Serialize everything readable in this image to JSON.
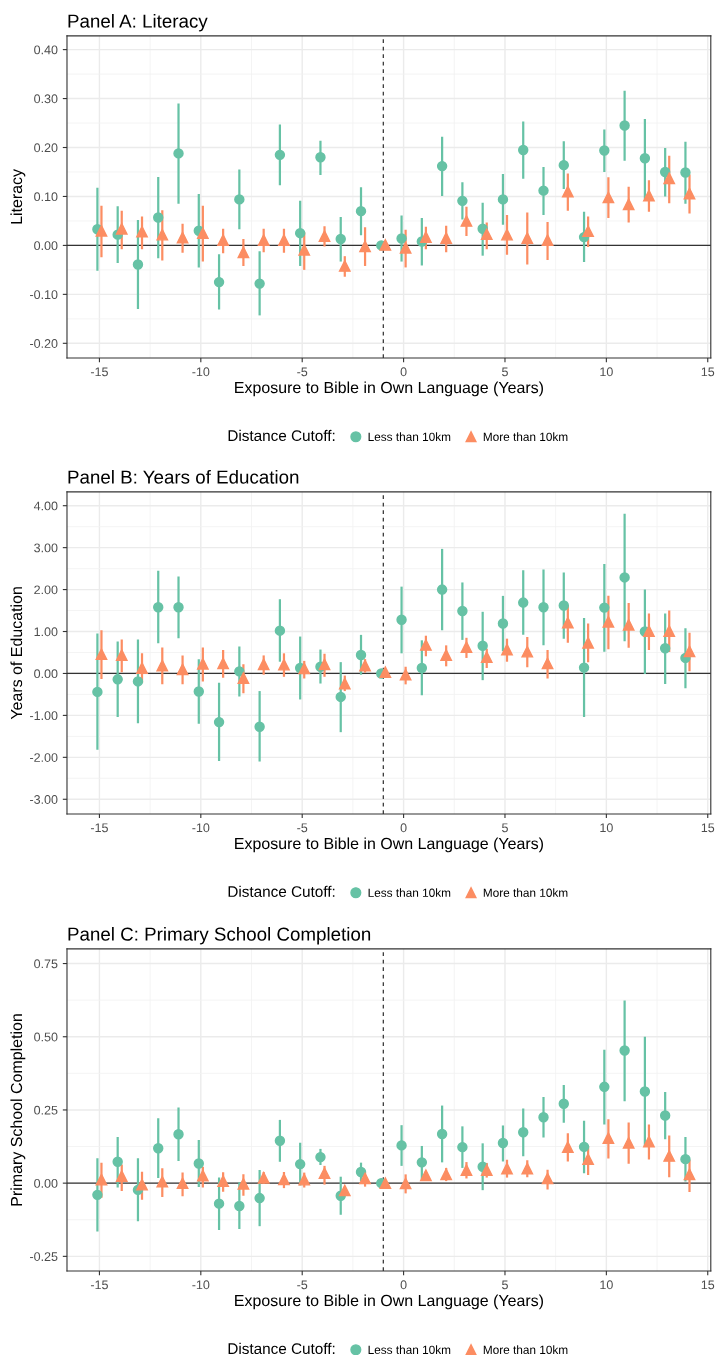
{
  "chart_data": [
    {
      "type": "scatter",
      "title": "Panel A: Literacy",
      "xlabel": "Exposure to Bible in Own Language (Years)",
      "ylabel": "Literacy",
      "legend_title": "Distance Cutoff:",
      "legend": "bottom",
      "grid": true,
      "xlim": [
        -16.6,
        15.15
      ],
      "xticks": [
        -15,
        -10,
        -5,
        0,
        5,
        10,
        15
      ],
      "ylim": [
        -0.23,
        0.428
      ],
      "yticks": [
        {
          "value": -0.2,
          "label": "-0.20"
        },
        {
          "value": -0.1,
          "label": "-0.10"
        },
        {
          "value": 0,
          "label": "0.00"
        },
        {
          "value": 0.1,
          "label": "0.10"
        },
        {
          "value": 0.2,
          "label": "0.20"
        },
        {
          "value": 0.3,
          "label": "0.30"
        },
        {
          "value": 0.4,
          "label": "0.40"
        }
      ],
      "ref_lines": [
        {
          "axis": "y",
          "value": 0,
          "color": "#333333",
          "line_style": "solid"
        },
        {
          "axis": "x",
          "value": -1,
          "color": "#333333",
          "line_style": "dashed"
        }
      ],
      "series": [
        {
          "name": "Less than 10km",
          "color": "#66c2a5",
          "marker": "circle",
          "x": [
            -15.1,
            -14.1,
            -13.1,
            -12.1,
            -11.1,
            -10.1,
            -9.1,
            -8.1,
            -7.1,
            -6.1,
            -5.1,
            -4.1,
            -3.1,
            -2.1,
            -1.1,
            -0.1,
            0.9,
            1.9,
            2.9,
            3.9,
            4.9,
            5.9,
            6.9,
            7.9,
            8.9,
            9.9,
            10.9,
            11.9,
            12.9,
            13.9
          ],
          "values": [
            0.033,
            0.022,
            -0.039,
            0.057,
            0.188,
            0.03,
            -0.075,
            0.094,
            -0.078,
            0.185,
            0.025,
            0.18,
            0.013,
            0.07,
            0.0,
            0.014,
            0.008,
            0.162,
            0.091,
            0.034,
            0.094,
            0.195,
            0.112,
            0.164,
            0.017,
            0.194,
            0.245,
            0.178,
            0.15,
            0.149
          ],
          "errors": [
            [
              -0.052,
              0.118
            ],
            [
              -0.036,
              0.08
            ],
            [
              -0.13,
              0.052
            ],
            [
              -0.026,
              0.14
            ],
            [
              0.085,
              0.29
            ],
            [
              -0.045,
              0.105
            ],
            [
              -0.131,
              -0.018
            ],
            [
              0.033,
              0.155
            ],
            [
              -0.143,
              -0.012
            ],
            [
              0.123,
              0.247
            ],
            [
              -0.042,
              0.091
            ],
            [
              0.144,
              0.214
            ],
            [
              -0.033,
              0.058
            ],
            [
              0.021,
              0.119
            ],
            null,
            [
              -0.033,
              0.061
            ],
            [
              -0.041,
              0.056
            ],
            [
              0.101,
              0.222
            ],
            [
              0.053,
              0.129
            ],
            [
              -0.021,
              0.087
            ],
            [
              0.042,
              0.146
            ],
            [
              0.136,
              0.253
            ],
            [
              0.062,
              0.16
            ],
            [
              0.115,
              0.213
            ],
            [
              -0.034,
              0.069
            ],
            [
              0.15,
              0.237
            ],
            [
              0.173,
              0.316
            ],
            [
              0.095,
              0.258
            ],
            [
              0.1,
              0.199
            ],
            [
              0.085,
              0.212
            ]
          ]
        },
        {
          "name": "More than 10km",
          "color": "#fc8d62",
          "marker": "triangle",
          "x": [
            -14.9,
            -13.9,
            -12.9,
            -11.9,
            -10.9,
            -9.9,
            -8.9,
            -7.9,
            -6.9,
            -5.9,
            -4.9,
            -3.9,
            -2.9,
            -1.9,
            -0.9,
            0.1,
            1.1,
            2.1,
            3.1,
            4.1,
            5.1,
            6.1,
            7.1,
            8.1,
            9.1,
            10.1,
            11.1,
            12.1,
            13.1,
            14.1
          ],
          "values": [
            0.03,
            0.034,
            0.028,
            0.022,
            0.016,
            0.025,
            0.011,
            -0.014,
            0.011,
            0.011,
            -0.009,
            0.019,
            -0.042,
            -0.002,
            0.001,
            -0.005,
            0.017,
            0.015,
            0.05,
            0.023,
            0.022,
            0.015,
            0.011,
            0.11,
            0.029,
            0.098,
            0.084,
            0.102,
            0.137,
            0.106
          ],
          "errors": [
            [
              -0.024,
              0.081
            ],
            [
              -0.008,
              0.071
            ],
            [
              -0.008,
              0.059
            ],
            [
              -0.031,
              0.072
            ],
            [
              -0.015,
              0.044
            ],
            [
              -0.033,
              0.081
            ],
            [
              -0.016,
              0.034
            ],
            [
              -0.042,
              0.013
            ],
            [
              -0.014,
              0.034
            ],
            [
              -0.015,
              0.034
            ],
            [
              -0.05,
              0.027
            ],
            [
              -0.002,
              0.039
            ],
            [
              -0.064,
              -0.022
            ],
            [
              -0.042,
              0.037
            ],
            null,
            [
              -0.045,
              0.032
            ],
            [
              -0.008,
              0.038
            ],
            [
              -0.014,
              0.04
            ],
            [
              0.019,
              0.079
            ],
            [
              -0.008,
              0.047
            ],
            [
              -0.019,
              0.062
            ],
            [
              -0.039,
              0.067
            ],
            [
              -0.03,
              0.048
            ],
            [
              0.071,
              0.147
            ],
            [
              -0.003,
              0.059
            ],
            [
              0.056,
              0.139
            ],
            [
              0.047,
              0.12
            ],
            [
              0.069,
              0.133
            ],
            [
              0.086,
              0.183
            ],
            [
              0.065,
              0.145
            ]
          ]
        }
      ]
    },
    {
      "type": "scatter",
      "title": "Panel B: Years of Education",
      "xlabel": "Exposure to Bible in Own Language (Years)",
      "ylabel": "Years of Education",
      "legend_title": "Distance Cutoff:",
      "legend": "bottom",
      "grid": true,
      "xlim": [
        -16.6,
        15.15
      ],
      "xticks": [
        -15,
        -10,
        -5,
        0,
        5,
        10,
        15
      ],
      "ylim": [
        -3.35,
        4.33
      ],
      "yticks": [
        {
          "value": -3,
          "label": "-3.00"
        },
        {
          "value": -2,
          "label": "-2.00"
        },
        {
          "value": -1,
          "label": "-1.00"
        },
        {
          "value": 0,
          "label": "0.00"
        },
        {
          "value": 1,
          "label": "1.00"
        },
        {
          "value": 2,
          "label": "2.00"
        },
        {
          "value": 3,
          "label": "3.00"
        },
        {
          "value": 4,
          "label": "4.00"
        }
      ],
      "ref_lines": [
        {
          "axis": "y",
          "value": 0,
          "color": "#333333",
          "line_style": "solid"
        },
        {
          "axis": "x",
          "value": -1,
          "color": "#333333",
          "line_style": "dashed"
        }
      ],
      "series": [
        {
          "name": "Less than 10km",
          "color": "#66c2a5",
          "marker": "circle",
          "x": [
            -15.1,
            -14.1,
            -13.1,
            -12.1,
            -11.1,
            -10.1,
            -9.1,
            -8.1,
            -7.1,
            -6.1,
            -5.1,
            -4.1,
            -3.1,
            -2.1,
            -1.1,
            -0.1,
            0.9,
            1.9,
            2.9,
            3.9,
            4.9,
            5.9,
            6.9,
            7.9,
            8.9,
            9.9,
            10.9,
            11.9,
            12.9,
            13.9
          ],
          "values": [
            -0.44,
            -0.14,
            -0.19,
            1.58,
            1.58,
            -0.43,
            -1.16,
            0.05,
            -1.27,
            1.02,
            0.13,
            0.16,
            -0.56,
            0.44,
            0.0,
            1.28,
            0.13,
            2.0,
            1.49,
            0.66,
            1.19,
            1.69,
            1.58,
            1.62,
            0.14,
            1.57,
            2.29,
            1.0,
            0.6,
            0.37
          ],
          "errors": [
            [
              -1.82,
              0.95
            ],
            [
              -1.04,
              0.76
            ],
            [
              -1.19,
              0.81
            ],
            [
              0.72,
              2.45
            ],
            [
              0.84,
              2.31
            ],
            [
              -1.2,
              0.34
            ],
            [
              -2.09,
              -0.22
            ],
            [
              -0.55,
              0.64
            ],
            [
              -2.1,
              -0.42
            ],
            [
              0.28,
              1.77
            ],
            [
              -0.62,
              0.88
            ],
            [
              -0.24,
              0.57
            ],
            [
              -1.4,
              0.27
            ],
            [
              -0.03,
              0.92
            ],
            null,
            [
              0.48,
              2.07
            ],
            [
              -0.52,
              0.79
            ],
            [
              1.03,
              2.97
            ],
            [
              0.8,
              2.17
            ],
            [
              -0.16,
              1.47
            ],
            [
              0.53,
              1.85
            ],
            [
              0.92,
              2.46
            ],
            [
              0.67,
              2.48
            ],
            [
              0.83,
              2.41
            ],
            [
              -1.04,
              1.32
            ],
            [
              0.52,
              2.61
            ],
            [
              0.77,
              3.81
            ],
            [
              -0.01,
              2.0
            ],
            [
              -0.25,
              1.43
            ],
            [
              -0.35,
              1.08
            ]
          ]
        },
        {
          "name": "More than 10km",
          "color": "#fc8d62",
          "marker": "triangle",
          "x": [
            -14.9,
            -13.9,
            -12.9,
            -11.9,
            -10.9,
            -9.9,
            -8.9,
            -7.9,
            -6.9,
            -5.9,
            -4.9,
            -3.9,
            -2.9,
            -1.9,
            -0.9,
            0.1,
            1.1,
            2.1,
            3.1,
            4.1,
            5.1,
            6.1,
            7.1,
            8.1,
            9.1,
            10.1,
            11.1,
            12.1,
            13.1,
            14.1
          ],
          "values": [
            0.46,
            0.44,
            0.13,
            0.19,
            0.1,
            0.23,
            0.24,
            -0.11,
            0.22,
            0.21,
            0.12,
            0.22,
            -0.24,
            0.19,
            0.03,
            -0.03,
            0.68,
            0.44,
            0.63,
            0.39,
            0.57,
            0.52,
            0.24,
            1.21,
            0.73,
            1.23,
            1.16,
            1.01,
            1.01,
            0.53
          ],
          "errors": [
            [
              -0.13,
              1.03
            ],
            [
              0.03,
              0.81
            ],
            [
              -0.23,
              0.48
            ],
            [
              -0.26,
              0.62
            ],
            [
              -0.26,
              0.43
            ],
            [
              -0.19,
              0.62
            ],
            [
              -0.1,
              0.56
            ],
            [
              -0.47,
              0.22
            ],
            [
              -0.03,
              0.43
            ],
            [
              -0.08,
              0.48
            ],
            [
              -0.12,
              0.3
            ],
            [
              -0.08,
              0.47
            ],
            [
              -0.42,
              -0.05
            ],
            [
              0.02,
              0.34
            ],
            null,
            [
              -0.26,
              0.16
            ],
            [
              0.41,
              0.9
            ],
            [
              0.17,
              0.67
            ],
            [
              0.37,
              0.85
            ],
            [
              0.13,
              0.59
            ],
            [
              0.28,
              0.83
            ],
            [
              0.15,
              0.87
            ],
            [
              -0.12,
              0.56
            ],
            [
              0.73,
              1.63
            ],
            [
              0.27,
              1.19
            ],
            [
              0.58,
              1.85
            ],
            [
              0.61,
              1.68
            ],
            [
              0.56,
              1.43
            ],
            [
              0.51,
              1.5
            ],
            [
              0.05,
              0.97
            ]
          ]
        }
      ]
    },
    {
      "type": "scatter",
      "title": "Panel C: Primary School Completion",
      "xlabel": "Exposure to Bible in Own Language (Years)",
      "ylabel": "Primary School Completion",
      "legend_title": "Distance Cutoff:",
      "legend": "bottom",
      "grid": true,
      "xlim": [
        -16.6,
        15.15
      ],
      "xticks": [
        -15,
        -10,
        -5,
        0,
        5,
        10,
        15
      ],
      "ylim": [
        -0.3,
        0.8
      ],
      "yticks": [
        {
          "value": -0.25,
          "label": "-0.25"
        },
        {
          "value": 0,
          "label": "0.00"
        },
        {
          "value": 0.25,
          "label": "0.25"
        },
        {
          "value": 0.5,
          "label": "0.50"
        },
        {
          "value": 0.75,
          "label": "0.75"
        }
      ],
      "ref_lines": [
        {
          "axis": "y",
          "value": 0,
          "color": "#333333",
          "line_style": "solid"
        },
        {
          "axis": "x",
          "value": -1,
          "color": "#333333",
          "line_style": "dashed"
        }
      ],
      "series": [
        {
          "name": "Less than 10km",
          "color": "#66c2a5",
          "marker": "circle",
          "x": [
            -15.1,
            -14.1,
            -13.1,
            -12.1,
            -11.1,
            -10.1,
            -9.1,
            -8.1,
            -7.1,
            -6.1,
            -5.1,
            -4.1,
            -3.1,
            -2.1,
            -1.1,
            -0.1,
            0.9,
            1.9,
            2.9,
            3.9,
            4.9,
            5.9,
            6.9,
            7.9,
            8.9,
            9.9,
            10.9,
            11.9,
            12.9,
            13.9
          ],
          "values": [
            -0.04,
            0.073,
            -0.023,
            0.119,
            0.167,
            0.067,
            -0.07,
            -0.078,
            -0.051,
            0.145,
            0.065,
            0.089,
            -0.043,
            0.038,
            0.0,
            0.129,
            0.071,
            0.168,
            0.123,
            0.056,
            0.137,
            0.174,
            0.225,
            0.271,
            0.124,
            0.329,
            0.453,
            0.313,
            0.231,
            0.082
          ],
          "errors": [
            [
              -0.165,
              0.085
            ],
            [
              -0.015,
              0.158
            ],
            [
              -0.13,
              0.085
            ],
            [
              0.018,
              0.222
            ],
            [
              0.076,
              0.258
            ],
            [
              -0.013,
              0.147
            ],
            [
              -0.16,
              0.019
            ],
            [
              -0.157,
              0.003
            ],
            [
              -0.147,
              0.045
            ],
            [
              0.073,
              0.216
            ],
            [
              -0.008,
              0.138
            ],
            [
              0.062,
              0.117
            ],
            [
              -0.108,
              0.022
            ],
            [
              0.007,
              0.07
            ],
            null,
            [
              0.059,
              0.198
            ],
            [
              0.013,
              0.127
            ],
            [
              0.071,
              0.265
            ],
            [
              0.052,
              0.194
            ],
            [
              -0.024,
              0.136
            ],
            [
              0.074,
              0.197
            ],
            [
              0.092,
              0.255
            ],
            [
              0.156,
              0.294
            ],
            [
              0.206,
              0.335
            ],
            [
              0.034,
              0.213
            ],
            [
              0.2,
              0.456
            ],
            [
              0.28,
              0.624
            ],
            [
              0.127,
              0.5
            ],
            [
              0.15,
              0.311
            ],
            [
              0.006,
              0.158
            ]
          ]
        },
        {
          "name": "More than 10km",
          "color": "#fc8d62",
          "marker": "triangle",
          "x": [
            -14.9,
            -13.9,
            -12.9,
            -11.9,
            -10.9,
            -9.9,
            -8.9,
            -7.9,
            -6.9,
            -5.9,
            -4.9,
            -3.9,
            -2.9,
            -1.9,
            -0.9,
            0.1,
            1.1,
            2.1,
            3.1,
            4.1,
            5.1,
            6.1,
            7.1,
            8.1,
            9.1,
            10.1,
            11.1,
            12.1,
            13.1,
            14.1
          ],
          "values": [
            0.012,
            0.024,
            -0.005,
            0.005,
            0.0,
            0.026,
            0.007,
            -0.002,
            0.018,
            0.013,
            0.012,
            0.034,
            -0.025,
            0.016,
            0.0,
            -0.001,
            0.027,
            0.03,
            0.045,
            0.045,
            0.05,
            0.05,
            0.016,
            0.123,
            0.082,
            0.154,
            0.138,
            0.142,
            0.093,
            0.03
          ],
          "errors": [
            [
              -0.05,
              0.07
            ],
            [
              -0.027,
              0.064
            ],
            [
              -0.057,
              0.039
            ],
            [
              -0.047,
              0.051
            ],
            [
              -0.045,
              0.036
            ],
            [
              -0.015,
              0.056
            ],
            [
              -0.029,
              0.037
            ],
            [
              -0.043,
              0.03
            ],
            [
              -0.002,
              0.038
            ],
            [
              -0.017,
              0.038
            ],
            [
              -0.015,
              0.036
            ],
            [
              -0.005,
              0.059
            ],
            [
              -0.038,
              -0.012
            ],
            [
              -0.012,
              0.036
            ],
            null,
            [
              -0.035,
              0.03
            ],
            [
              0.013,
              0.041
            ],
            [
              0.007,
              0.052
            ],
            [
              0.016,
              0.072
            ],
            [
              0.019,
              0.069
            ],
            [
              0.019,
              0.08
            ],
            [
              0.02,
              0.078
            ],
            [
              -0.022,
              0.046
            ],
            [
              0.074,
              0.17
            ],
            [
              0.028,
              0.127
            ],
            [
              0.084,
              0.218
            ],
            [
              0.066,
              0.207
            ],
            [
              0.081,
              0.2
            ],
            [
              0.02,
              0.163
            ],
            [
              -0.03,
              0.08
            ]
          ]
        }
      ]
    }
  ]
}
